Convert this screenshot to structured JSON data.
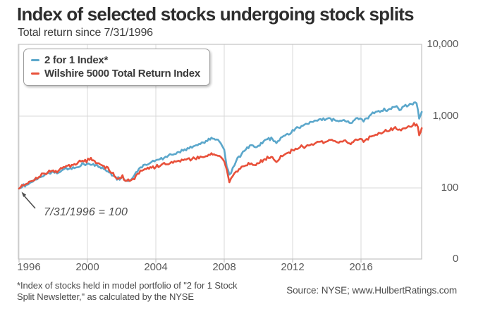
{
  "header": {
    "title": "Index of selected stocks undergoing stock splits",
    "subtitle": "Total return since 7/31/1996"
  },
  "legend": {
    "items": [
      {
        "label": "2 for 1 Index*",
        "color": "#5ba7cb"
      },
      {
        "label": "Wilshire 5000 Total Return Index",
        "color": "#e8503a"
      }
    ]
  },
  "annotation": {
    "text": "7/31/1996 = 100"
  },
  "footer": {
    "footnote_line1": "*Index of stocks held in model portfolio of \"2 for 1 Stock",
    "footnote_line2": "Split Newsletter,\" as calculated by the NYSE",
    "source": "Source: NYSE; www.HulbertRatings.com"
  },
  "chart_data": {
    "type": "line",
    "title": "Index of selected stocks undergoing stock splits",
    "subtitle": "Total return since 7/31/1996",
    "base_note": "7/31/1996 = 100",
    "grid": true,
    "legend_position": "top-left",
    "x_axis": {
      "ticks": [
        1996,
        2000,
        2004,
        2008,
        2012,
        2016
      ],
      "range_years": [
        1996,
        2019.6
      ]
    },
    "y_axis": {
      "scale": "log",
      "position": "right",
      "ticks": [
        {
          "label": "10,000",
          "value": 10000
        },
        {
          "label": "1,000",
          "value": 1000
        },
        {
          "label": "100",
          "value": 100
        },
        {
          "label": "0",
          "value": 0
        }
      ]
    },
    "series": [
      {
        "name": "2 for 1 Index*",
        "color": "#5ba7cb",
        "points": [
          [
            1996.0,
            98
          ],
          [
            1996.35,
            110
          ],
          [
            1996.75,
            120
          ],
          [
            1997.15,
            138
          ],
          [
            1997.6,
            155
          ],
          [
            1998.0,
            170
          ],
          [
            1998.3,
            160
          ],
          [
            1998.6,
            182
          ],
          [
            1999.0,
            188
          ],
          [
            1999.4,
            199
          ],
          [
            1999.7,
            208
          ],
          [
            2000.05,
            214
          ],
          [
            2000.35,
            209
          ],
          [
            2000.65,
            200
          ],
          [
            2000.95,
            184
          ],
          [
            2001.2,
            168
          ],
          [
            2001.5,
            148
          ],
          [
            2001.8,
            133
          ],
          [
            2002.05,
            140
          ],
          [
            2002.3,
            126
          ],
          [
            2002.55,
            131
          ],
          [
            2002.75,
            152
          ],
          [
            2003.1,
            195
          ],
          [
            2003.45,
            210
          ],
          [
            2003.75,
            228
          ],
          [
            2004.4,
            262
          ],
          [
            2005.0,
            292
          ],
          [
            2005.6,
            330
          ],
          [
            2006.2,
            382
          ],
          [
            2006.85,
            432
          ],
          [
            2007.25,
            490
          ],
          [
            2007.55,
            462
          ],
          [
            2007.8,
            420
          ],
          [
            2008.0,
            330
          ],
          [
            2008.15,
            205
          ],
          [
            2008.3,
            158
          ],
          [
            2008.5,
            182
          ],
          [
            2008.7,
            245
          ],
          [
            2009.1,
            320
          ],
          [
            2009.5,
            390
          ],
          [
            2009.85,
            360
          ],
          [
            2010.15,
            420
          ],
          [
            2010.45,
            468
          ],
          [
            2010.75,
            495
          ],
          [
            2011.05,
            425
          ],
          [
            2011.4,
            515
          ],
          [
            2011.7,
            558
          ],
          [
            2012.0,
            618
          ],
          [
            2012.6,
            742
          ],
          [
            2013.2,
            845
          ],
          [
            2013.8,
            885
          ],
          [
            2014.3,
            908
          ],
          [
            2014.7,
            850
          ],
          [
            2015.0,
            888
          ],
          [
            2015.4,
            795
          ],
          [
            2015.7,
            900
          ],
          [
            2015.95,
            930
          ],
          [
            2016.15,
            860
          ],
          [
            2016.5,
            1010
          ],
          [
            2016.95,
            1165
          ],
          [
            2017.6,
            1270
          ],
          [
            2018.0,
            1395
          ],
          [
            2018.25,
            1250
          ],
          [
            2018.6,
            1360
          ],
          [
            2018.95,
            1460
          ],
          [
            2019.25,
            1540
          ],
          [
            2019.4,
            955
          ],
          [
            2019.55,
            1145
          ]
        ]
      },
      {
        "name": "Wilshire 5000 Total Return Index",
        "color": "#e8503a",
        "points": [
          [
            1996.0,
            98
          ],
          [
            1996.35,
            112
          ],
          [
            1996.75,
            124
          ],
          [
            1997.15,
            144
          ],
          [
            1997.6,
            162
          ],
          [
            1998.0,
            180
          ],
          [
            1998.3,
            170
          ],
          [
            1998.6,
            194
          ],
          [
            1999.0,
            204
          ],
          [
            1999.4,
            222
          ],
          [
            1999.7,
            238
          ],
          [
            2000.2,
            247
          ],
          [
            2000.5,
            231
          ],
          [
            2000.9,
            206
          ],
          [
            2001.2,
            184
          ],
          [
            2001.5,
            158
          ],
          [
            2001.8,
            134
          ],
          [
            2002.05,
            141
          ],
          [
            2002.3,
            122
          ],
          [
            2002.55,
            128
          ],
          [
            2002.75,
            140
          ],
          [
            2003.1,
            170
          ],
          [
            2003.45,
            184
          ],
          [
            2003.75,
            192
          ],
          [
            2004.4,
            210
          ],
          [
            2005.0,
            228
          ],
          [
            2005.6,
            245
          ],
          [
            2006.2,
            258
          ],
          [
            2006.85,
            274
          ],
          [
            2007.25,
            294
          ],
          [
            2007.55,
            283
          ],
          [
            2007.8,
            262
          ],
          [
            2008.0,
            230
          ],
          [
            2008.15,
            178
          ],
          [
            2008.3,
            126
          ],
          [
            2008.5,
            141
          ],
          [
            2008.7,
            170
          ],
          [
            2009.1,
            196
          ],
          [
            2009.5,
            222
          ],
          [
            2009.85,
            208
          ],
          [
            2010.15,
            238
          ],
          [
            2010.45,
            255
          ],
          [
            2010.75,
            272
          ],
          [
            2011.05,
            230
          ],
          [
            2011.4,
            286
          ],
          [
            2011.7,
            300
          ],
          [
            2012.0,
            328
          ],
          [
            2012.6,
            375
          ],
          [
            2013.2,
            410
          ],
          [
            2013.8,
            440
          ],
          [
            2014.3,
            460
          ],
          [
            2014.7,
            442
          ],
          [
            2015.0,
            462
          ],
          [
            2015.4,
            422
          ],
          [
            2015.7,
            470
          ],
          [
            2015.95,
            485
          ],
          [
            2016.15,
            450
          ],
          [
            2016.5,
            520
          ],
          [
            2016.95,
            560
          ],
          [
            2017.6,
            630
          ],
          [
            2018.0,
            680
          ],
          [
            2018.25,
            635
          ],
          [
            2018.6,
            680
          ],
          [
            2018.95,
            735
          ],
          [
            2019.25,
            790
          ],
          [
            2019.4,
            570
          ],
          [
            2019.55,
            680
          ]
        ]
      }
    ]
  }
}
